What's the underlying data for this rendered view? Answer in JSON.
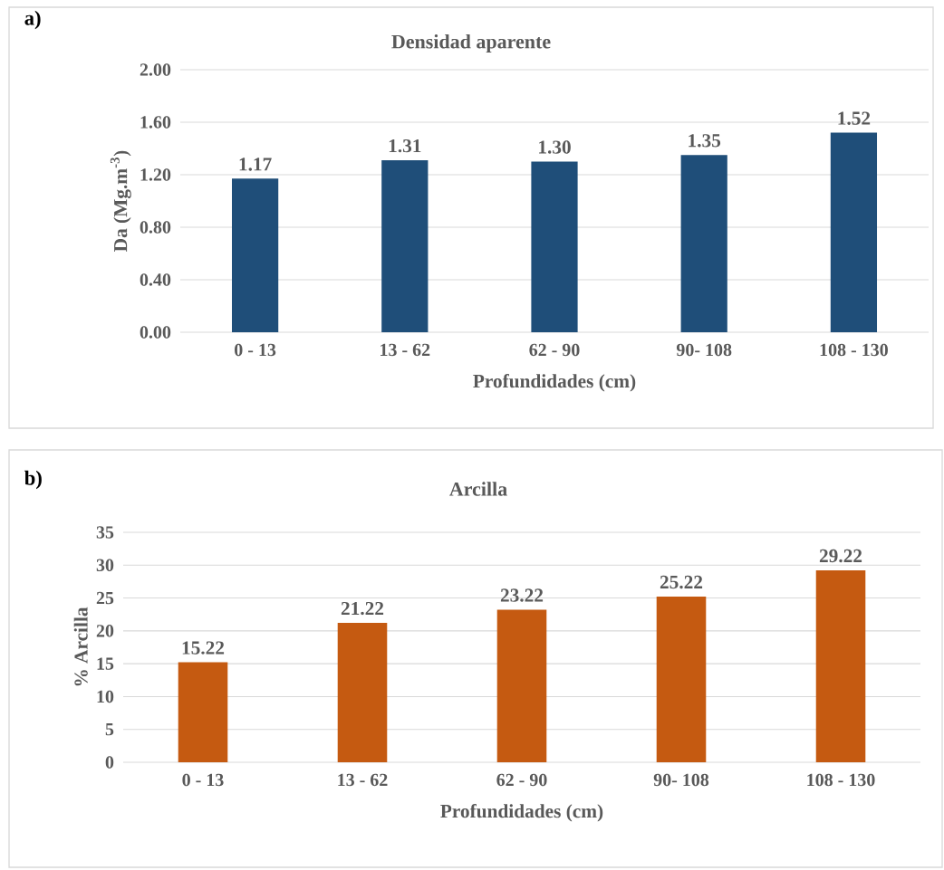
{
  "chart_data": [
    {
      "type": "bar",
      "title": "Densidad aparente",
      "xlabel": "Profundidades (cm)",
      "ylabel": "Da (Mg.m$^{-3}$)",
      "annotations": [
        "a)"
      ],
      "categories": [
        "0 - 13",
        "13 - 62",
        "62 - 90",
        "90- 108",
        "108 - 130"
      ],
      "values": [
        1.17,
        1.31,
        1.3,
        1.35,
        1.52
      ],
      "value_labels": [
        "1.17",
        "1.31",
        "1.30",
        "1.35",
        "1.52"
      ],
      "color": "#1f4e79",
      "ylim": [
        0,
        2
      ],
      "yticks": [
        {
          "value": 0,
          "label": "0.00"
        },
        {
          "value": 0.4,
          "label": "0.40"
        },
        {
          "value": 0.8,
          "label": "0.80"
        },
        {
          "value": 1.2,
          "label": "1.20"
        },
        {
          "value": 1.6,
          "label": "1.60"
        },
        {
          "value": 2,
          "label": "2.00"
        }
      ],
      "grid": "y"
    },
    {
      "type": "bar",
      "title": "Arcilla",
      "xlabel": "Profundidades (cm)",
      "ylabel": "% Arcilla",
      "annotations": [
        "b)"
      ],
      "categories": [
        "0 - 13",
        "13 - 62",
        "62 - 90",
        "90- 108",
        "108 - 130"
      ],
      "values": [
        15.22,
        21.22,
        23.22,
        25.22,
        29.22
      ],
      "value_labels": [
        "15.22",
        "21.22",
        "23.22",
        "25.22",
        "29.22"
      ],
      "color": "#c55a11",
      "ylim": [
        0,
        35
      ],
      "yticks": [
        0,
        5,
        10,
        15,
        20,
        25,
        30,
        35
      ],
      "grid": "y"
    }
  ]
}
